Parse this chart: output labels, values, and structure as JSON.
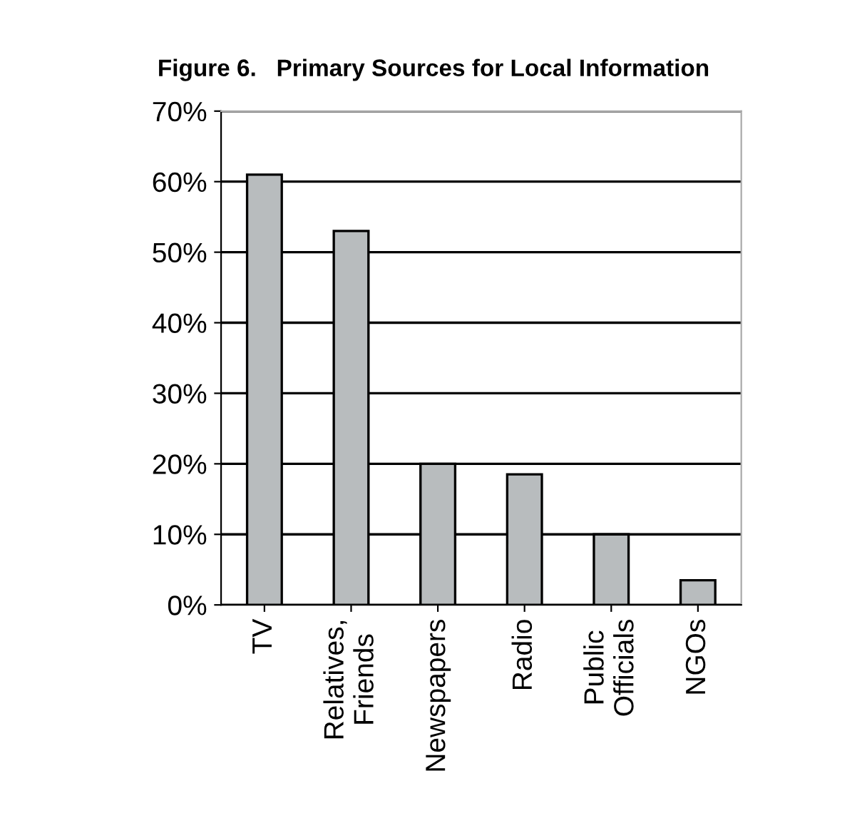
{
  "chart_data": {
    "type": "bar",
    "title": "Figure 6.   Primary Sources for Local Information",
    "categories": [
      "TV",
      "Relatives,\nFriends",
      "Newspapers",
      "Radio",
      "Public\nOfficials",
      "NGOs"
    ],
    "values": [
      61,
      53,
      20,
      18.5,
      10,
      3.5
    ],
    "color": "#b8bcbe",
    "ylim": [
      0,
      70
    ],
    "yticks": [
      {
        "value": 0,
        "label": "0%"
      },
      {
        "value": 10,
        "label": "10%"
      },
      {
        "value": 20,
        "label": "20%"
      },
      {
        "value": 30,
        "label": "30%"
      },
      {
        "value": 40,
        "label": "40%"
      },
      {
        "value": 50,
        "label": "50%"
      },
      {
        "value": 60,
        "label": "60%"
      },
      {
        "value": 70,
        "label": "70%"
      }
    ],
    "grid": "y",
    "legend": false
  }
}
